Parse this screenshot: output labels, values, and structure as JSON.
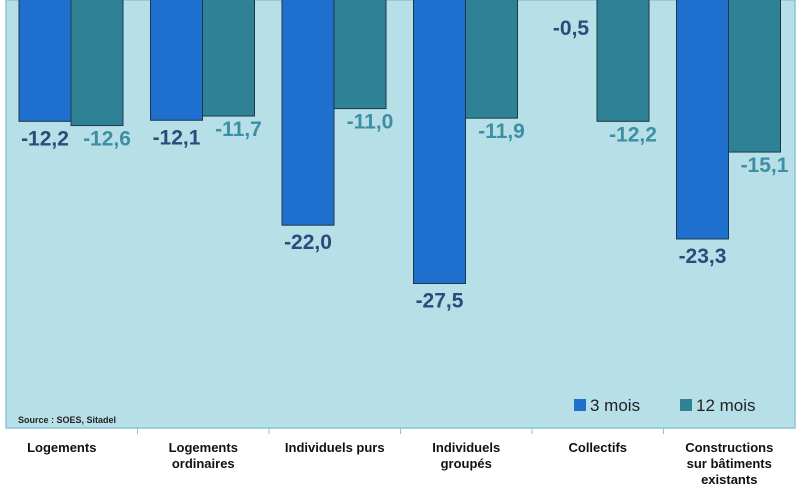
{
  "chart_data": {
    "type": "bar",
    "categories": [
      [
        "Logements"
      ],
      [
        "Logements",
        "ordinaires"
      ],
      [
        "Individuels purs"
      ],
      [
        "Individuels",
        "groupés"
      ],
      [
        "Collectifs"
      ],
      [
        "Constructions",
        "sur bâtiments",
        "existants"
      ]
    ],
    "series": [
      {
        "name": "3 mois",
        "values": [
          -12.2,
          -12.1,
          -22.0,
          -27.5,
          -0.5,
          -23.3
        ],
        "labels": [
          "-12,2",
          "-12,1",
          "-22,0",
          "-27,5",
          "-0,5",
          "-23,3"
        ],
        "color": "#1e6fce",
        "label_color": "#2d4a7a"
      },
      {
        "name": "12 mois",
        "values": [
          -12.6,
          -11.7,
          -11.0,
          -11.9,
          -12.2,
          -15.1
        ],
        "labels": [
          "-12,6",
          "-11,7",
          "-11,0",
          "-11,9",
          "-12,2",
          "-15,1"
        ],
        "color": "#2f8296",
        "label_color": "#3d8fa3"
      }
    ],
    "source": "Source : SOES,  Sitadel",
    "legend_position": "bottom-right",
    "ylim": [
      -35,
      0
    ],
    "plot_background": "#b7dfe7",
    "grid": false
  }
}
